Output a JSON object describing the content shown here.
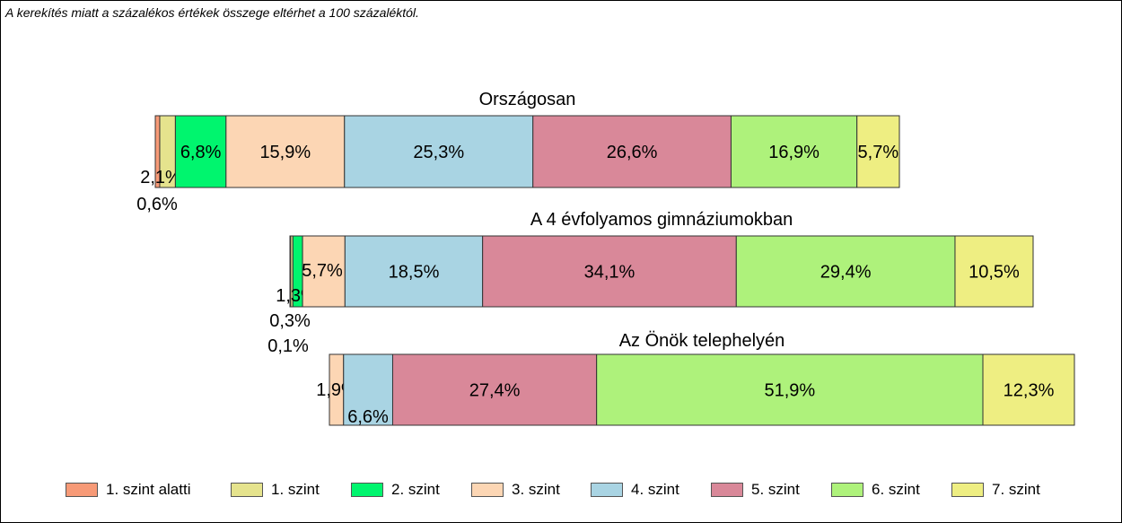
{
  "note": "A kerekítés miatt a  százalékos értékek összege eltérhet a 100 százaléktól.",
  "colors": {
    "1. szint alatti": "#f79a77",
    "1. szint": "#e5e38d",
    "2. szint": "#00f56e",
    "3. szint": "#fcd6b4",
    "4. szint": "#a9d4e3",
    "5. szint": "#d98899",
    "6. szint": "#aef27b",
    "7. szint": "#eeee82"
  },
  "chart_data": {
    "type": "bar",
    "orientation": "horizontal-stacked",
    "categories": [
      "1. szint alatti",
      "1. szint",
      "2. szint",
      "3. szint",
      "4. szint",
      "5. szint",
      "6. szint",
      "7. szint"
    ],
    "legend_position": "bottom",
    "series": [
      {
        "name": "Országosan",
        "values": [
          0.6,
          2.1,
          6.8,
          15.9,
          25.3,
          26.6,
          16.9,
          5.7
        ],
        "labels": [
          "0,6%",
          "2,1%",
          "6,8%",
          "15,9%",
          "25,3%",
          "26,6%",
          "16,9%",
          "5,7%"
        ]
      },
      {
        "name": "A 4 évfolyamos gimnáziumokban",
        "values": [
          0.1,
          0.3,
          1.3,
          5.7,
          18.5,
          34.1,
          29.4,
          10.5
        ],
        "labels": [
          "0,1%",
          "0,3%",
          "1,3%",
          "5,7%",
          "18,5%",
          "34,1%",
          "29,4%",
          "10,5%"
        ]
      },
      {
        "name": "Az Önök telephelyén",
        "values": [
          0,
          0,
          0,
          1.9,
          6.6,
          27.4,
          51.9,
          12.3
        ],
        "labels": [
          "",
          "",
          "",
          "1,9%",
          "6,6%",
          "27,4%",
          "51,9%",
          "12,3%"
        ]
      }
    ]
  }
}
